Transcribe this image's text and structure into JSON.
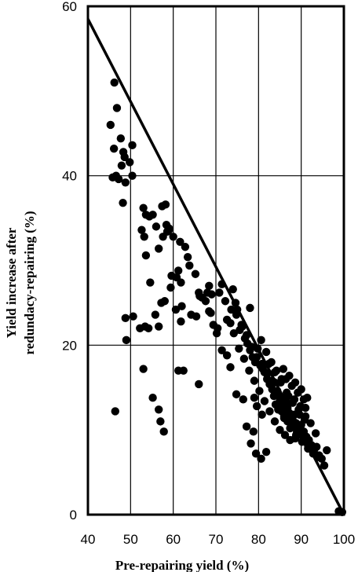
{
  "chart_data": {
    "type": "scatter",
    "title": "",
    "xlabel": "Pre-repairing yield (%)",
    "ylabel_lines": [
      "Yield increase after",
      "redundacy-repairing (%)"
    ],
    "xlim": [
      40,
      100
    ],
    "ylim": [
      0,
      60
    ],
    "xticks": [
      40,
      50,
      60,
      70,
      80,
      90,
      100
    ],
    "yticks": [
      0,
      20,
      40,
      60
    ],
    "grid": true,
    "point_color": "#000000",
    "reference_line": {
      "x": [
        40,
        100
      ],
      "y": [
        58.5,
        0
      ]
    },
    "series": [
      {
        "x": [
          46.2,
          46.8,
          47.7,
          45.3,
          46.1,
          48.3,
          48.6,
          47.2,
          50.4,
          49.8,
          48.8,
          48.2,
          45.8,
          46.6,
          47.9,
          50.4,
          53.0,
          53.6,
          54.4,
          55.2,
          56.0,
          52.6,
          53.2,
          57.4,
          58.2,
          58.4,
          59.0,
          58.6,
          57.6,
          56.6,
          53.6,
          60.0,
          61.6,
          62.8,
          63.4,
          61.2,
          59.6,
          60.8,
          61.8,
          59.4,
          63.8,
          65.2,
          66.0,
          66.8,
          67.6,
          68.4,
          69.0,
          58.0,
          62.0,
          64.2,
          65.4,
          66.2,
          68.0,
          68.8,
          69.4,
          70.2,
          70.8,
          71.4,
          72.2,
          72.6,
          73.4,
          74.0,
          74.6,
          75.0,
          75.6,
          76.2,
          76.8,
          77.4,
          78.0,
          78.6,
          79.2,
          79.8,
          80.4,
          81.0,
          81.4,
          82.0,
          82.6,
          83.2,
          83.8,
          84.4,
          85.0,
          85.6,
          86.0,
          86.6,
          87.2,
          87.8,
          88.4,
          88.8,
          89.4,
          90.0,
          90.6,
          91.2,
          91.8,
          92.4,
          93.0,
          93.6,
          94.2,
          94.8,
          95.4,
          96.0,
          94.0,
          92.8,
          91.6,
          90.4,
          89.2,
          88.0,
          86.8,
          85.6,
          84.4,
          83.2,
          82.0,
          80.8,
          79.6,
          78.4,
          77.2,
          76.0,
          74.8,
          73.6,
          75.4,
          76.6,
          77.8,
          79.0,
          80.2,
          81.4,
          82.6,
          83.8,
          85.0,
          86.2,
          87.4,
          88.6,
          89.8,
          91.0,
          92.2,
          93.4,
          84.0,
          85.4,
          86.8,
          88.2,
          89.6,
          91.0,
          87.0,
          88.4,
          89.8,
          86.4,
          87.8,
          89.2,
          90.6,
          85.8,
          87.2,
          88.6,
          90.0,
          91.4,
          86.0,
          87.4,
          88.8,
          90.2,
          91.6,
          84.6,
          86.0,
          87.6,
          89.0,
          90.4,
          83.6,
          85.2,
          86.6,
          88.0,
          89.4,
          82.4,
          83.8,
          85.2,
          86.6,
          88.0,
          89.4,
          90.8,
          80.6,
          81.8,
          83.0,
          84.2,
          85.4,
          79.0,
          79.6,
          80.8,
          77.2,
          78.8,
          78.2,
          76.4,
          74.8,
          73.4,
          72.6,
          71.4,
          79.4,
          80.6,
          81.8,
          70.4,
          68.4,
          74.2,
          78.0,
          49.0,
          52.2,
          53.4,
          54.2,
          55.8,
          56.6,
          57.2,
          54.6,
          55.2,
          56.6,
          57.0,
          57.8,
          60.6,
          61.2,
          62.4,
          66.0,
          46.4,
          98.8,
          99.6,
          61.8,
          59.0,
          48.8,
          53.0,
          50.6
        ],
        "y": [
          51.0,
          48.0,
          44.4,
          46.0,
          43.2,
          42.8,
          42.2,
          39.6,
          43.6,
          41.6,
          39.2,
          36.8,
          39.8,
          40.0,
          41.2,
          40.0,
          36.2,
          35.4,
          35.2,
          35.4,
          34.0,
          33.6,
          32.8,
          36.4,
          36.6,
          34.2,
          33.6,
          33.4,
          32.8,
          31.4,
          30.6,
          32.8,
          32.2,
          31.6,
          30.4,
          28.8,
          28.2,
          28.0,
          27.4,
          26.8,
          29.4,
          28.4,
          26.2,
          25.6,
          25.2,
          24.0,
          26.0,
          25.2,
          24.6,
          23.6,
          23.4,
          25.8,
          26.2,
          23.8,
          22.4,
          21.4,
          26.2,
          27.2,
          25.2,
          23.0,
          22.6,
          26.6,
          25.0,
          24.2,
          21.8,
          22.2,
          20.8,
          20.2,
          19.4,
          18.6,
          18.0,
          19.6,
          17.6,
          17.2,
          16.8,
          16.0,
          15.4,
          14.8,
          15.6,
          14.2,
          13.4,
          12.8,
          12.4,
          13.2,
          12.0,
          11.4,
          11.8,
          10.8,
          10.2,
          10.6,
          9.8,
          9.2,
          8.8,
          8.2,
          7.6,
          8.0,
          7.0,
          6.6,
          5.8,
          7.6,
          6.8,
          7.2,
          8.2,
          9.4,
          10.2,
          11.2,
          12.6,
          13.8,
          14.6,
          15.8,
          16.6,
          17.8,
          18.6,
          19.8,
          21.2,
          22.4,
          23.6,
          24.2,
          19.6,
          18.4,
          17.0,
          15.8,
          14.6,
          13.4,
          12.2,
          11.0,
          10.0,
          9.4,
          8.8,
          9.0,
          10.4,
          11.6,
          10.8,
          9.6,
          13.0,
          12.2,
          11.0,
          10.6,
          11.8,
          12.6,
          14.0,
          13.6,
          12.8,
          16.0,
          15.2,
          14.4,
          13.6,
          17.2,
          16.4,
          15.6,
          14.8,
          13.8,
          11.4,
          10.2,
          9.4,
          8.6,
          7.8,
          12.4,
          11.6,
          10.8,
          9.8,
          9.2,
          14.0,
          13.0,
          12.0,
          11.0,
          10.4,
          17.8,
          16.8,
          15.6,
          14.4,
          13.2,
          12.4,
          11.2,
          20.6,
          19.2,
          18.0,
          17.0,
          16.0,
          13.8,
          12.8,
          11.8,
          10.4,
          9.8,
          8.4,
          13.6,
          14.2,
          17.4,
          18.8,
          19.4,
          7.2,
          6.6,
          7.4,
          22.0,
          27.0,
          21.4,
          24.4,
          20.6,
          22.0,
          22.2,
          22.0,
          23.6,
          22.2,
          25.0,
          27.4,
          13.8,
          12.4,
          11.0,
          9.8,
          24.2,
          17.0,
          17.0,
          15.4,
          12.2,
          0.4,
          0.3,
          22.8,
          33.8,
          23.2,
          17.2,
          23.4
        ]
      }
    ]
  }
}
